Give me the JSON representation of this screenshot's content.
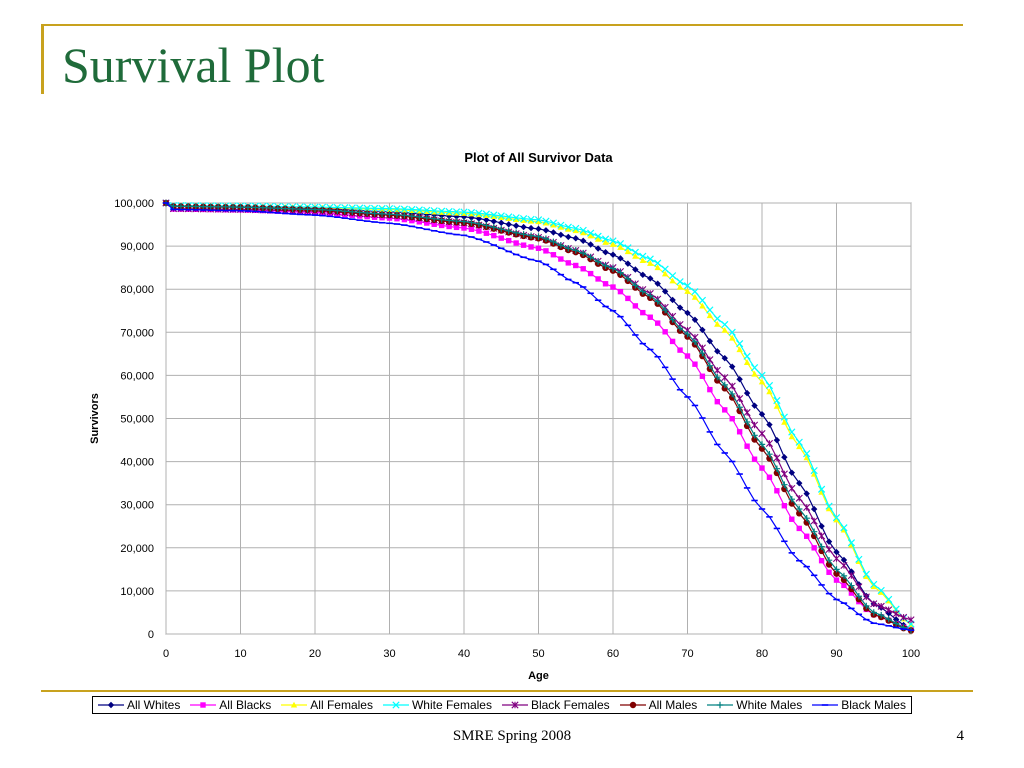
{
  "slide": {
    "title": "Survival Plot",
    "footer": "SMRE Spring 2008",
    "page_number": "4"
  },
  "colors": {
    "accent": "#c8a21e",
    "title": "#1f6b3a"
  },
  "chart_data": {
    "type": "line",
    "title": "Plot of All Survivor Data",
    "xlabel": "Age",
    "ylabel": "Survivors",
    "xlim": [
      0,
      100
    ],
    "ylim": [
      0,
      100000
    ],
    "x_ticks": [
      0,
      10,
      20,
      30,
      40,
      50,
      60,
      70,
      80,
      90,
      100
    ],
    "x_tick_labels": [
      "0",
      "10",
      "20",
      "30",
      "40",
      "50",
      "60",
      "70",
      "80",
      "90",
      "100"
    ],
    "y_ticks": [
      0,
      10000,
      20000,
      30000,
      40000,
      50000,
      60000,
      70000,
      80000,
      90000,
      100000
    ],
    "y_tick_labels": [
      "0",
      "10,000",
      "20,000",
      "30,000",
      "40,000",
      "50,000",
      "60,000",
      "70,000",
      "80,000",
      "90,000",
      "100,000"
    ],
    "grid": true,
    "legend_position": "bottom",
    "x": [
      0,
      1,
      10,
      20,
      30,
      40,
      50,
      55,
      60,
      65,
      70,
      75,
      80,
      85,
      90,
      95,
      100
    ],
    "series": [
      {
        "name": "All Whites",
        "color": "#000080",
        "marker": "diamond",
        "values": [
          100000,
          99300,
          99100,
          98700,
          98000,
          96800,
          94000,
          91800,
          88000,
          82500,
          74500,
          64000,
          51000,
          35000,
          19000,
          7000,
          1200
        ]
      },
      {
        "name": "All Blacks",
        "color": "#ff00ff",
        "marker": "square",
        "values": [
          100000,
          98600,
          98400,
          97800,
          96500,
          94200,
          89500,
          85500,
          80500,
          73500,
          64500,
          52000,
          38500,
          24500,
          12500,
          4500,
          1000
        ]
      },
      {
        "name": "All Females",
        "color": "#ffff00",
        "marker": "triangle",
        "values": [
          100000,
          99350,
          99200,
          98900,
          98500,
          97600,
          95700,
          93600,
          90400,
          86000,
          79500,
          70500,
          58500,
          43500,
          26500,
          11000,
          2200
        ]
      },
      {
        "name": "White Females",
        "color": "#00ffff",
        "marker": "x",
        "values": [
          100000,
          99400,
          99300,
          99050,
          98700,
          97900,
          96100,
          94100,
          91200,
          87000,
          80800,
          71800,
          60000,
          44500,
          27000,
          11500,
          2300
        ]
      },
      {
        "name": "Black Females",
        "color": "#800080",
        "marker": "star",
        "values": [
          100000,
          98700,
          98500,
          98100,
          97200,
          95400,
          92000,
          89000,
          85000,
          79000,
          70500,
          59500,
          46500,
          31500,
          17500,
          7000,
          3300
        ]
      },
      {
        "name": "All Males",
        "color": "#800000",
        "marker": "circle",
        "values": [
          100000,
          99200,
          99000,
          98400,
          97200,
          95400,
          91800,
          88600,
          84300,
          78000,
          69000,
          57000,
          43000,
          28000,
          14000,
          4500,
          800
        ]
      },
      {
        "name": "White Males",
        "color": "#008080",
        "marker": "plus",
        "values": [
          100000,
          99250,
          99050,
          98500,
          97400,
          95700,
          92200,
          89000,
          84800,
          78500,
          69600,
          57800,
          44000,
          29000,
          15000,
          5000,
          900
        ]
      },
      {
        "name": "Black Males",
        "color": "#0000ff",
        "marker": "dash",
        "values": [
          100000,
          98500,
          98200,
          97200,
          95300,
          92500,
          86500,
          81500,
          75000,
          66000,
          55000,
          42000,
          29000,
          17000,
          8000,
          2500,
          900
        ]
      }
    ]
  }
}
